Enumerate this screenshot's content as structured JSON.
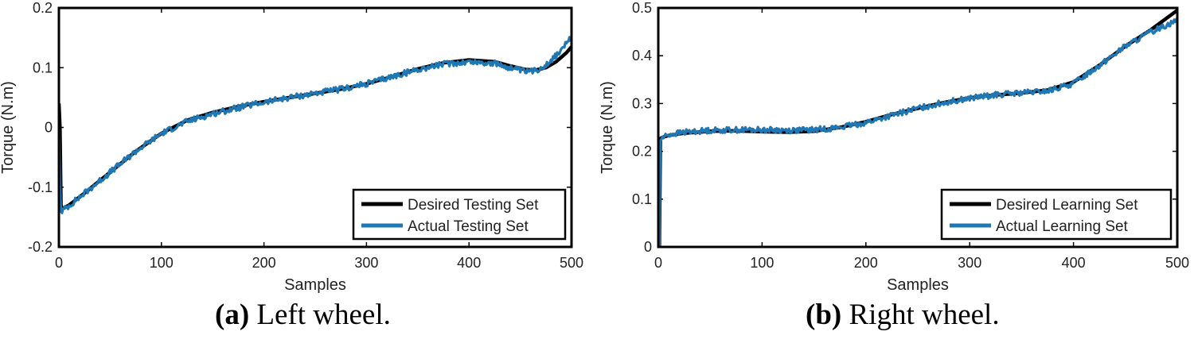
{
  "chart_data": [
    {
      "type": "line",
      "xlabel": "Samples",
      "ylabel": "Torque (N.m)",
      "xlim": [
        0,
        500
      ],
      "ylim": [
        -0.2,
        0.2
      ],
      "xticks": [
        0,
        100,
        200,
        300,
        400,
        500
      ],
      "xtick_labels": [
        "0",
        "100",
        "200",
        "300",
        "400",
        "500"
      ],
      "yticks": [
        -0.2,
        -0.1,
        0,
        0.1,
        0.2
      ],
      "ytick_labels": [
        "-0.2",
        "-0.1",
        "0",
        "0.1",
        "0.2"
      ],
      "legend_position": "bottom-right",
      "series": [
        {
          "name": "Desired Testing Set",
          "color": "#000000",
          "x": [
            0,
            1,
            2,
            3,
            5,
            10,
            25,
            50,
            75,
            100,
            125,
            150,
            175,
            200,
            225,
            250,
            275,
            300,
            325,
            350,
            375,
            400,
            425,
            440,
            455,
            465,
            475,
            485,
            495,
            500
          ],
          "y": [
            0.04,
            0.0,
            -0.13,
            -0.135,
            -0.135,
            -0.13,
            -0.11,
            -0.075,
            -0.04,
            -0.01,
            0.012,
            0.025,
            0.035,
            0.043,
            0.05,
            0.057,
            0.064,
            0.073,
            0.085,
            0.098,
            0.108,
            0.113,
            0.11,
            0.103,
            0.097,
            0.096,
            0.1,
            0.11,
            0.125,
            0.135
          ]
        },
        {
          "name": "Actual Testing Set",
          "color": "#1f77b4",
          "noise": 0.005,
          "x": [
            0,
            1,
            2,
            3,
            5,
            10,
            25,
            50,
            75,
            100,
            125,
            150,
            175,
            200,
            225,
            250,
            275,
            300,
            325,
            350,
            375,
            400,
            425,
            440,
            455,
            465,
            475,
            485,
            495,
            500
          ],
          "y": [
            0.0,
            -0.1,
            -0.14,
            -0.14,
            -0.137,
            -0.131,
            -0.11,
            -0.075,
            -0.04,
            -0.01,
            0.01,
            0.023,
            0.033,
            0.042,
            0.05,
            0.057,
            0.064,
            0.073,
            0.085,
            0.097,
            0.106,
            0.11,
            0.107,
            0.1,
            0.093,
            0.095,
            0.105,
            0.12,
            0.14,
            0.15
          ]
        }
      ]
    },
    {
      "type": "line",
      "xlabel": "Samples",
      "ylabel": "Torque (N.m)",
      "xlim": [
        0,
        500
      ],
      "ylim": [
        0,
        0.5
      ],
      "xticks": [
        0,
        100,
        200,
        300,
        400,
        500
      ],
      "xtick_labels": [
        "0",
        "100",
        "200",
        "300",
        "400",
        "500"
      ],
      "yticks": [
        0,
        0.1,
        0.2,
        0.3,
        0.4,
        0.5
      ],
      "ytick_labels": [
        "0",
        "0.1",
        "0.2",
        "0.3",
        "0.4",
        "0.5"
      ],
      "legend_position": "bottom-right",
      "series": [
        {
          "name": "Desired Learning Set",
          "color": "#000000",
          "x": [
            0,
            1,
            2,
            3,
            5,
            10,
            25,
            50,
            75,
            100,
            125,
            150,
            175,
            200,
            225,
            250,
            275,
            300,
            325,
            350,
            375,
            400,
            425,
            450,
            475,
            500
          ],
          "y": [
            0.0,
            0.0,
            0.226,
            0.228,
            0.23,
            0.233,
            0.238,
            0.242,
            0.243,
            0.241,
            0.24,
            0.242,
            0.25,
            0.262,
            0.277,
            0.29,
            0.302,
            0.312,
            0.318,
            0.322,
            0.328,
            0.345,
            0.38,
            0.42,
            0.455,
            0.495
          ]
        },
        {
          "name": "Actual Learning Set",
          "color": "#1f77b4",
          "noise": 0.006,
          "x": [
            0,
            1,
            2,
            3,
            5,
            10,
            25,
            50,
            75,
            100,
            125,
            150,
            175,
            200,
            225,
            250,
            275,
            300,
            325,
            350,
            375,
            400,
            425,
            450,
            475,
            500
          ],
          "y": [
            0.0,
            0.0,
            0.222,
            0.226,
            0.23,
            0.235,
            0.24,
            0.244,
            0.245,
            0.245,
            0.244,
            0.245,
            0.25,
            0.26,
            0.275,
            0.29,
            0.302,
            0.311,
            0.318,
            0.322,
            0.326,
            0.342,
            0.38,
            0.42,
            0.45,
            0.475
          ]
        }
      ]
    }
  ],
  "captions": {
    "a": {
      "label": "(a)",
      "text": " Left wheel."
    },
    "b": {
      "label": "(b)",
      "text": " Right wheel."
    }
  }
}
